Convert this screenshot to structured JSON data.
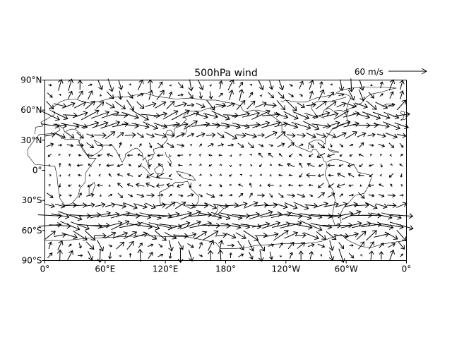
{
  "chart_data": {
    "type": "quiver",
    "title": "500hPa wind",
    "key": {
      "label": "60 m/s",
      "speed": 60
    },
    "xticks": [
      "0°",
      "60°E",
      "120°E",
      "180°",
      "120°W",
      "60°W",
      "0°"
    ],
    "yticks": [
      "90°N",
      "60°N",
      "30°N",
      "0°",
      "30°S",
      "60°S",
      "90°S"
    ],
    "xlim": [
      0,
      360
    ],
    "ylim": [
      -90,
      90
    ],
    "grid": false
  }
}
